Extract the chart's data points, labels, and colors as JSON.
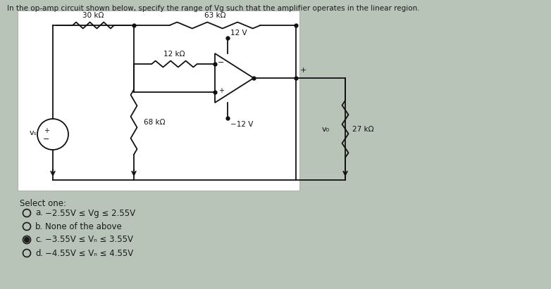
{
  "title": "In the op-amp circuit shown below, specify the range of Vg such that the amplifier operates in the linear region.",
  "page_bg": "#b8c4b8",
  "circuit_bg": "#ffffff",
  "text_color": "#1a1a1a",
  "select_one_text": "Select one:",
  "options": [
    {
      "label": "a.",
      "text": "−2.55V ≤ Vg ≤ 2.55V",
      "selected": false
    },
    {
      "label": "b.",
      "text": "None of the above",
      "selected": false
    },
    {
      "label": "c.",
      "text": "−3.55V ≤ Vₙ ≤ 3.55V",
      "selected": true
    },
    {
      "label": "d.",
      "text": "−4.55V ≤ Vₙ ≤ 4.55V",
      "selected": false
    }
  ],
  "R1_label": "30 kΩ",
  "R2_label": "63 kΩ",
  "R3_label": "12 kΩ",
  "R4_label": "68 kΩ",
  "R5_label": "27 kΩ",
  "Vplus_label": "12 V",
  "Vminus_label": "−12 V",
  "Vg_label": "vₛ",
  "Vo_label": "v₀"
}
